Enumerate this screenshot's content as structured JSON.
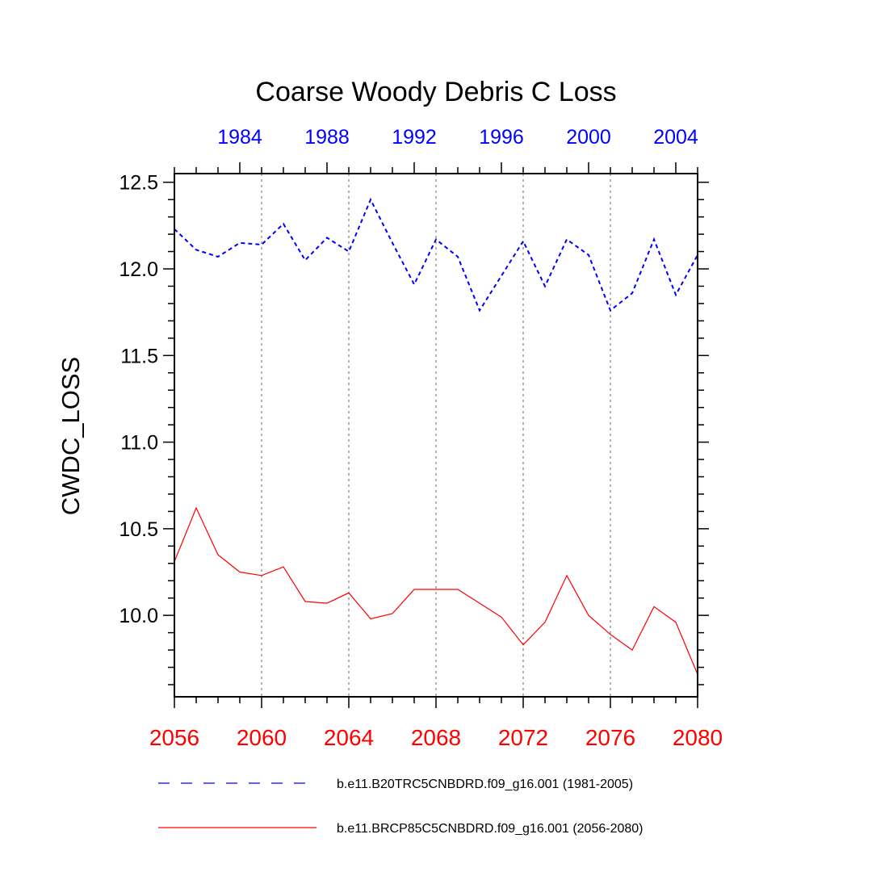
{
  "chart_data": {
    "type": "line",
    "title": "Coarse Woody Debris C Loss",
    "ylabel": "CWDC_LOSS",
    "xlabel": "",
    "ylim": [
      9.53,
      12.55
    ],
    "yticks": [
      "12.5",
      "12.0",
      "11.5",
      "11.0",
      "10.5",
      "10.0"
    ],
    "ytick_values": [
      12.5,
      12.0,
      11.5,
      11.0,
      10.5,
      10.0
    ],
    "grid": "vertical dotted at major bottom ticks",
    "bottom_axis": {
      "color": "#ff0000",
      "range": [
        2056,
        2080
      ],
      "ticks": [
        "2056",
        "2060",
        "2064",
        "2068",
        "2072",
        "2076",
        "2080"
      ],
      "tick_values": [
        2056,
        2060,
        2064,
        2068,
        2072,
        2076,
        2080
      ]
    },
    "top_axis": {
      "color": "#0000ff",
      "range": [
        1981,
        2005
      ],
      "ticks": [
        "1984",
        "1988",
        "1992",
        "1996",
        "2000",
        "2004"
      ],
      "tick_values": [
        1984,
        1988,
        1992,
        1996,
        2000,
        2004
      ]
    },
    "series": [
      {
        "name": "b.e11.B20TRC5CNBDRD.f09_g16.001 (1981-2005)",
        "color": "#0000ff",
        "style": "dashed",
        "axis": "top",
        "x": [
          1981,
          1982,
          1983,
          1984,
          1985,
          1986,
          1987,
          1988,
          1989,
          1990,
          1991,
          1992,
          1993,
          1994,
          1995,
          1996,
          1997,
          1998,
          1999,
          2000,
          2001,
          2002,
          2003,
          2004,
          2005
        ],
        "values": [
          12.23,
          12.11,
          12.07,
          12.15,
          12.14,
          12.26,
          12.05,
          12.18,
          12.1,
          12.4,
          12.15,
          11.91,
          12.17,
          12.07,
          11.76,
          11.96,
          12.16,
          11.9,
          12.17,
          12.08,
          11.76,
          11.86,
          12.17,
          11.85,
          12.08
        ]
      },
      {
        "name": "b.e11.BRCP85C5CNBDRD.f09_g16.001 (2056-2080)",
        "color": "#ff0000",
        "style": "solid",
        "axis": "bottom",
        "x": [
          2056,
          2057,
          2058,
          2059,
          2060,
          2061,
          2062,
          2063,
          2064,
          2065,
          2066,
          2067,
          2068,
          2069,
          2070,
          2071,
          2072,
          2073,
          2074,
          2075,
          2076,
          2077,
          2078,
          2079,
          2080
        ],
        "values": [
          10.31,
          10.62,
          10.35,
          10.25,
          10.23,
          10.28,
          10.08,
          10.07,
          10.13,
          9.98,
          10.01,
          10.15,
          10.15,
          10.15,
          10.07,
          9.99,
          9.83,
          9.96,
          10.23,
          10.0,
          9.89,
          9.8,
          10.05,
          9.96,
          9.66
        ]
      }
    ],
    "legend": {
      "placement": "bottom",
      "entries": [
        "b.e11.B20TRC5CNBDRD.f09_g16.001 (1981-2005)",
        "b.e11.BRCP85C5CNBDRD.f09_g16.001 (2056-2080)"
      ]
    }
  }
}
